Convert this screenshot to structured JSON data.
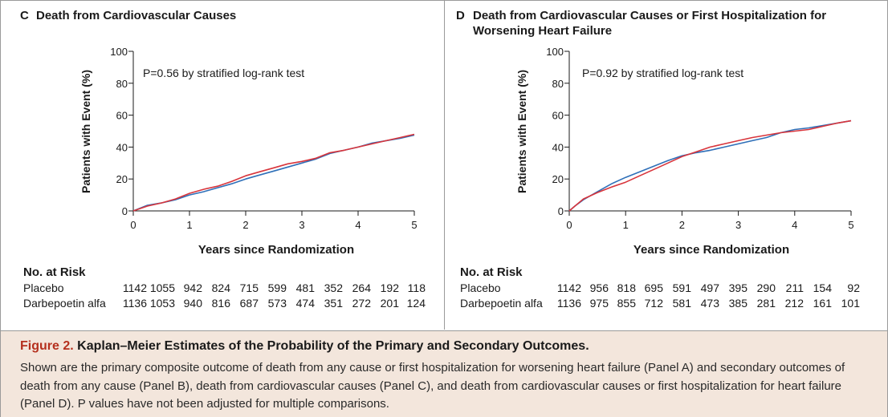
{
  "panels": [
    {
      "letter": "C",
      "title_lines": [
        "Death from Cardiovascular Causes"
      ],
      "pvalue": "P=0.56 by stratified log-rank test",
      "risk": {
        "header": "No. at Risk",
        "rows": [
          {
            "label": "Placebo",
            "values": [
              "1142",
              "1055",
              "942",
              "824",
              "715",
              "599",
              "481",
              "352",
              "264",
              "192",
              "118"
            ]
          },
          {
            "label": "Darbepoetin alfa",
            "values": [
              "1136",
              "1053",
              "940",
              "816",
              "687",
              "573",
              "474",
              "351",
              "272",
              "201",
              "124"
            ]
          }
        ]
      }
    },
    {
      "letter": "D",
      "title_lines": [
        "Death from Cardiovascular Causes or First Hospitalization for",
        "Worsening Heart Failure"
      ],
      "pvalue": "P=0.92 by stratified log-rank test",
      "risk": {
        "header": "No. at Risk",
        "rows": [
          {
            "label": "Placebo",
            "values": [
              "1142",
              "956",
              "818",
              "695",
              "591",
              "497",
              "395",
              "290",
              "211",
              "154",
              "92"
            ]
          },
          {
            "label": "Darbepoetin alfa",
            "values": [
              "1136",
              "975",
              "855",
              "712",
              "581",
              "473",
              "385",
              "281",
              "212",
              "161",
              "101"
            ]
          }
        ]
      }
    }
  ],
  "colors": {
    "placebo": "#2e6fb8",
    "darbepoetin": "#d8343b"
  },
  "chart_data": [
    {
      "type": "line",
      "panel": "C",
      "title": "Death from Cardiovascular Causes",
      "xlabel": "Years since Randomization",
      "ylabel": "Patients with Event (%)",
      "xlim": [
        0,
        5
      ],
      "ylim": [
        0,
        100
      ],
      "xticks": [
        0,
        1,
        2,
        3,
        4,
        5
      ],
      "yticks": [
        0,
        20,
        40,
        60,
        80,
        100
      ],
      "grid": false,
      "annotation": "P=0.56 by stratified log-rank test",
      "x": [
        0,
        0.25,
        0.5,
        0.75,
        1,
        1.25,
        1.5,
        1.75,
        2,
        2.25,
        2.5,
        2.75,
        3,
        3.25,
        3.5,
        3.75,
        4,
        4.25,
        4.5,
        4.75,
        5
      ],
      "series": [
        {
          "name": "Placebo",
          "values": [
            0,
            3.5,
            5,
            7,
            10,
            12,
            14.5,
            17,
            20,
            22.5,
            25,
            27.5,
            30,
            32.5,
            36,
            38,
            40,
            42.5,
            44,
            45.5,
            47.5
          ]
        },
        {
          "name": "Darbepoetin alfa",
          "values": [
            0,
            3,
            5,
            7.5,
            11,
            13.5,
            15.5,
            18.5,
            22,
            24.5,
            27,
            29.5,
            31,
            33,
            36.5,
            38,
            40,
            42,
            44,
            46,
            48
          ]
        }
      ]
    },
    {
      "type": "line",
      "panel": "D",
      "title": "Death from Cardiovascular Causes or First Hospitalization for Worsening Heart Failure",
      "xlabel": "Years since Randomization",
      "ylabel": "Patients with Event (%)",
      "xlim": [
        0,
        5
      ],
      "ylim": [
        0,
        100
      ],
      "xticks": [
        0,
        1,
        2,
        3,
        4,
        5
      ],
      "yticks": [
        0,
        20,
        40,
        60,
        80,
        100
      ],
      "grid": false,
      "annotation": "P=0.92 by stratified log-rank test",
      "x": [
        0,
        0.1,
        0.25,
        0.5,
        0.75,
        1,
        1.25,
        1.5,
        1.75,
        2,
        2.25,
        2.5,
        2.75,
        3,
        3.25,
        3.5,
        3.75,
        4,
        4.25,
        4.5,
        4.75,
        5
      ],
      "series": [
        {
          "name": "Placebo",
          "values": [
            0,
            3,
            7,
            12,
            17,
            21,
            24.5,
            28,
            31.5,
            34.5,
            36.5,
            38,
            40,
            42,
            44,
            46,
            49,
            51,
            52,
            53.5,
            55,
            56.5
          ]
        },
        {
          "name": "Darbepoetin alfa",
          "values": [
            0,
            3,
            7.5,
            11.5,
            15,
            18,
            22,
            26,
            30,
            34,
            37,
            40,
            42,
            44,
            46,
            47.5,
            49,
            50,
            51,
            53,
            55,
            56.5
          ]
        }
      ]
    }
  ],
  "caption": {
    "figure_label": "Figure 2.",
    "title": "Kaplan–Meier Estimates of the Probability of the Primary and Secondary Outcomes.",
    "body": "Shown are the primary composite outcome of death from any cause or first hospitalization for worsening heart failure (Panel A) and secondary outcomes of death from any cause (Panel B), death from cardiovascular causes (Panel C), and death from cardiovascular causes or first hospitalization for heart failure (Panel D). P values have not been adjusted for multiple comparisons."
  }
}
